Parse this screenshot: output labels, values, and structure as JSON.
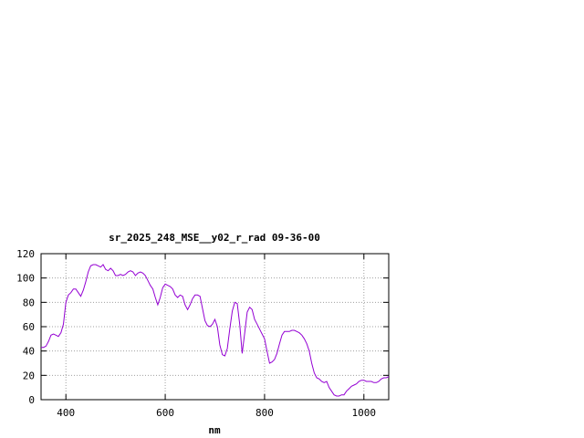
{
  "chart_data": {
    "type": "line",
    "title": "sr_2025_248_MSE__y02_r_rad 09-36-00",
    "xlabel": "nm",
    "ylabel": "",
    "xlim": [
      350,
      1050
    ],
    "ylim": [
      0,
      120
    ],
    "x_ticks": [
      400,
      600,
      800,
      1000
    ],
    "y_ticks": [
      0,
      20,
      40,
      60,
      80,
      100,
      120
    ],
    "grid": true,
    "series": [
      {
        "color": "#9400d3",
        "x": [
          350,
          355,
          360,
          365,
          370,
          375,
          380,
          385,
          390,
          395,
          400,
          405,
          410,
          415,
          420,
          425,
          430,
          435,
          440,
          445,
          450,
          455,
          460,
          465,
          470,
          475,
          480,
          485,
          490,
          495,
          500,
          505,
          510,
          515,
          520,
          525,
          530,
          535,
          540,
          545,
          550,
          555,
          560,
          565,
          570,
          575,
          580,
          585,
          590,
          595,
          600,
          605,
          610,
          615,
          620,
          625,
          630,
          635,
          640,
          645,
          650,
          655,
          660,
          665,
          670,
          675,
          680,
          685,
          690,
          695,
          700,
          705,
          710,
          715,
          720,
          725,
          730,
          735,
          740,
          745,
          750,
          755,
          760,
          765,
          770,
          775,
          780,
          785,
          790,
          795,
          800,
          805,
          810,
          815,
          820,
          825,
          830,
          835,
          840,
          845,
          850,
          855,
          860,
          865,
          870,
          875,
          880,
          885,
          890,
          895,
          900,
          905,
          910,
          915,
          920,
          925,
          930,
          935,
          940,
          945,
          950,
          955,
          960,
          965,
          970,
          975,
          980,
          985,
          990,
          995,
          1000,
          1005,
          1010,
          1015,
          1020,
          1025,
          1030,
          1035,
          1040,
          1045,
          1050
        ],
        "y": [
          43,
          43,
          44,
          48,
          53,
          54,
          53,
          52,
          55,
          62,
          80,
          86,
          88,
          91,
          91,
          88,
          85,
          90,
          97,
          105,
          110,
          111,
          111,
          110,
          109,
          111,
          107,
          106,
          108,
          106,
          102,
          102,
          103,
          102,
          103,
          105,
          106,
          105,
          102,
          104,
          105,
          104,
          102,
          98,
          94,
          91,
          84,
          78,
          84,
          92,
          95,
          94,
          93,
          91,
          86,
          84,
          86,
          85,
          78,
          74,
          78,
          83,
          86,
          86,
          85,
          75,
          65,
          61,
          60,
          62,
          66,
          60,
          45,
          37,
          36,
          42,
          58,
          73,
          80,
          79,
          62,
          38,
          55,
          72,
          76,
          74,
          66,
          62,
          58,
          54,
          50,
          40,
          30,
          31,
          33,
          38,
          46,
          53,
          56,
          56,
          56,
          57,
          57,
          56,
          55,
          53,
          50,
          46,
          40,
          30,
          22,
          18,
          17,
          15,
          14,
          15,
          10,
          7,
          4,
          3,
          3,
          4,
          4,
          7,
          9,
          11,
          12,
          13,
          15,
          16,
          16,
          15,
          15,
          15,
          14,
          14,
          15,
          17,
          18,
          18,
          19
        ]
      }
    ]
  }
}
